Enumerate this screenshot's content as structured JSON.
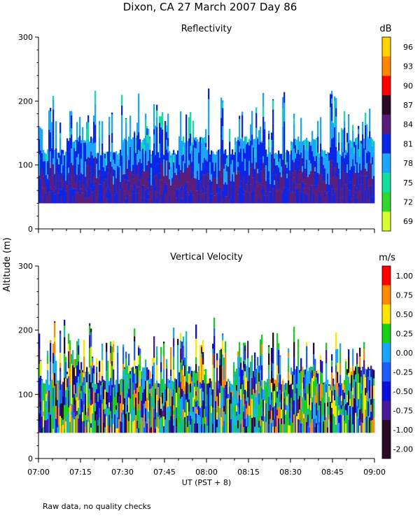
{
  "title": "Dixon, CA 27 March 2007  Day  86",
  "footnote": "Raw data, no quality checks",
  "ylabel": "Altitude (m)",
  "xlabel": "UT  (PST + 8)",
  "chart_data": [
    {
      "type": "heatmap",
      "title": "Reflectivity",
      "unit": "dB",
      "x_ticks": [
        "07:00",
        "07:15",
        "07:30",
        "07:45",
        "08:00",
        "08:15",
        "08:30",
        "08:45",
        "09:00"
      ],
      "y_ticks": [
        0,
        100,
        200,
        300
      ],
      "ylim": [
        0,
        300
      ],
      "xlim": [
        "07:00",
        "09:00"
      ],
      "colorbar_labels": [
        "96",
        "93",
        "90",
        "87",
        "84",
        "81",
        "78",
        "75",
        "72",
        "69"
      ],
      "colorbar_colors": [
        "#ffd400",
        "#ff8800",
        "#ff0000",
        "#2b0a24",
        "#5a1d7a",
        "#0a26e8",
        "#1aa6ff",
        "#12e0a0",
        "#2ed82e",
        "#d8ff2e"
      ],
      "lower_boundary_m": 40,
      "typical_top_m": [
        120,
        140
      ],
      "max_echo_top_m": 220
    },
    {
      "type": "heatmap",
      "title": "Vertical Velocity",
      "unit": "m/s",
      "x_ticks": [
        "07:00",
        "07:15",
        "07:30",
        "07:45",
        "08:00",
        "08:15",
        "08:30",
        "08:45",
        "09:00"
      ],
      "y_ticks": [
        0,
        100,
        200,
        300
      ],
      "ylim": [
        0,
        300
      ],
      "xlim": [
        "07:00",
        "09:00"
      ],
      "colorbar_labels": [
        "1.00",
        "0.75",
        "0.50",
        "0.25",
        "0.00",
        "-0.25",
        "-0.50",
        "-0.75",
        "-1.00",
        "-2.00"
      ],
      "colorbar_colors": [
        "#ff0000",
        "#ff8a00",
        "#ffe600",
        "#18d018",
        "#1aa6ff",
        "#1e5dff",
        "#0a10e0",
        "#4b1a96",
        "#2b0a24",
        "#2b0a24"
      ],
      "lower_boundary_m": 40,
      "typical_top_m": [
        120,
        140
      ],
      "max_echo_top_m": 220
    }
  ]
}
